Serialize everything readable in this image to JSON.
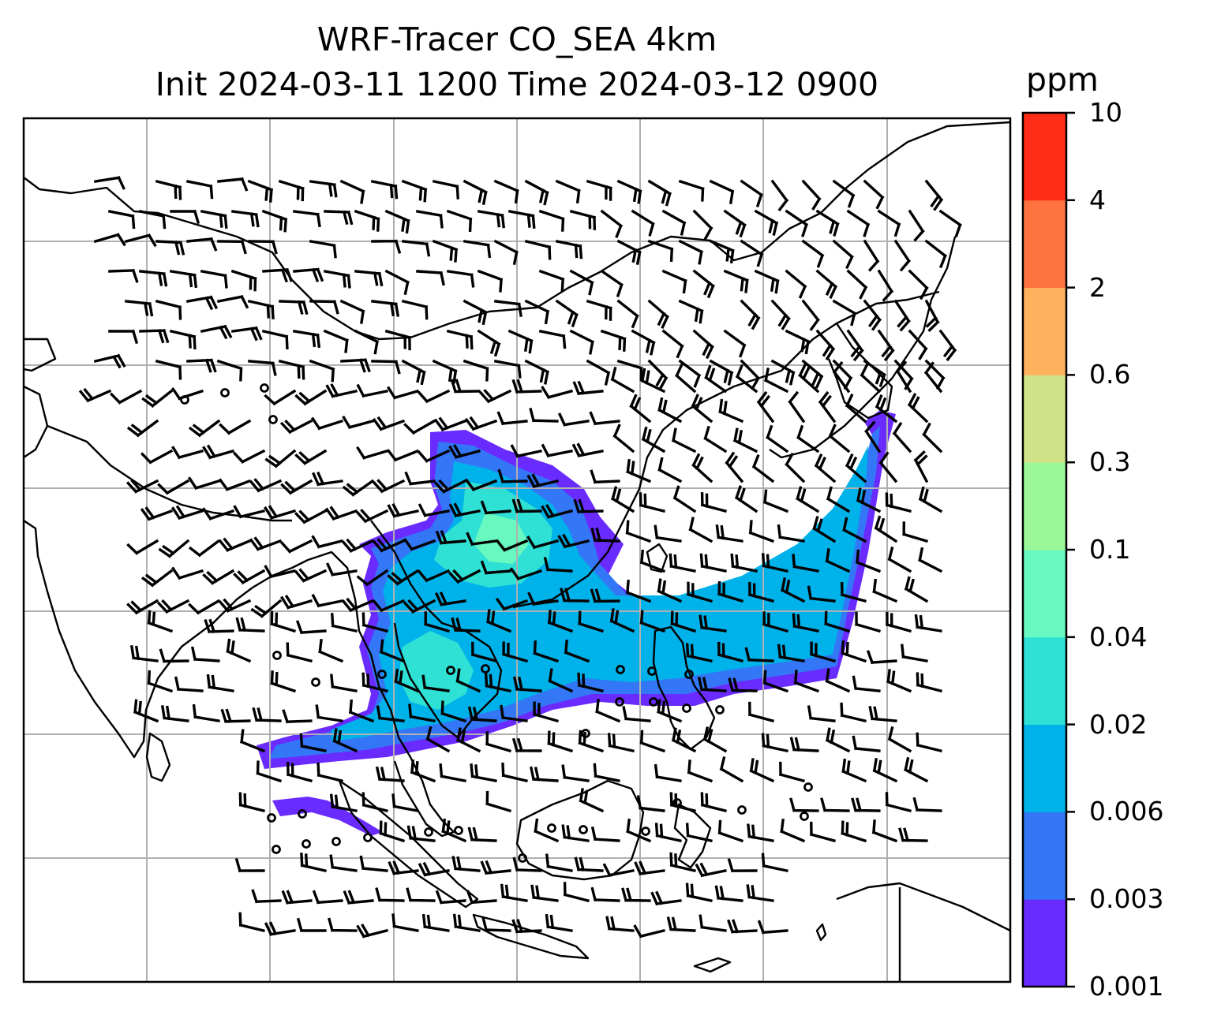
{
  "figure": {
    "title_line1": "WRF-Tracer CO_SEA 4km",
    "title_line2": "Init 2024-03-11 1200 Time 2024-03-12 0900"
  },
  "colorbar": {
    "unit": "ppm",
    "ticks": [
      "0.001",
      "0.003",
      "0.006",
      "0.02",
      "0.04",
      "0.1",
      "0.3",
      "0.6",
      "2",
      "4",
      "10"
    ],
    "colors": [
      "#6a2bff",
      "#3377f6",
      "#00b2ea",
      "#2fe0d4",
      "#67f9bf",
      "#9bf898",
      "#d0e389",
      "#ffb25e",
      "#ff7340",
      "#ff2d18"
    ]
  },
  "map": {
    "gridlines": true,
    "coastline_color": "#000000",
    "gridline_color": "#b0b0b0",
    "barb_color": "#000000",
    "plume_levels": [
      "0.001",
      "0.003",
      "0.006",
      "0.02",
      "0.04"
    ]
  }
}
